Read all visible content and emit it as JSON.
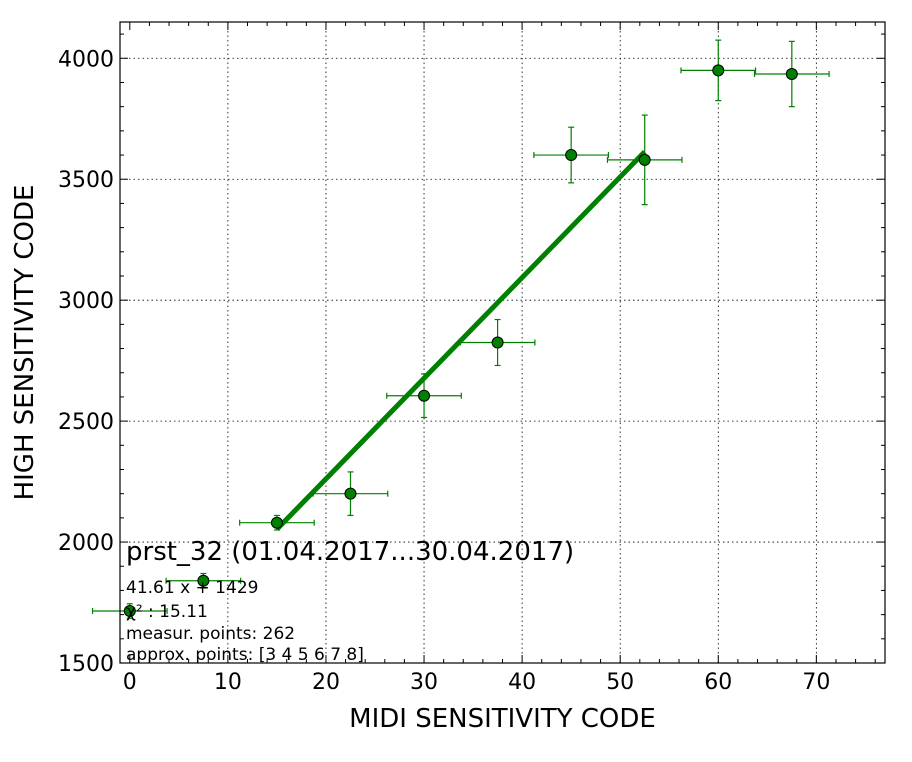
{
  "chart_data": {
    "type": "scatter",
    "title": "prst_32 (01.04.2017...30.04.2017)",
    "xlabel": "MIDI SENSITIVITY CODE",
    "ylabel": "HIGH SENSITIVITY CODE",
    "xlim": [
      -1,
      77
    ],
    "ylim": [
      1500,
      4150
    ],
    "xticks": [
      0,
      10,
      20,
      30,
      40,
      50,
      60,
      70
    ],
    "yticks": [
      1500,
      2000,
      2500,
      3000,
      3500,
      4000
    ],
    "grid": true,
    "color": "#008000",
    "series": [
      {
        "points": [
          {
            "x": 0,
            "y": 1715,
            "xerr": 3.8,
            "yerr": 30
          },
          {
            "x": 7.5,
            "y": 1840,
            "xerr": 3.8,
            "yerr": 30
          },
          {
            "x": 15,
            "y": 2080,
            "xerr": 3.8,
            "yerr": 30
          },
          {
            "x": 22.5,
            "y": 2200,
            "xerr": 3.8,
            "yerr": 90
          },
          {
            "x": 30,
            "y": 2605,
            "xerr": 3.8,
            "yerr": 90
          },
          {
            "x": 37.5,
            "y": 2825,
            "xerr": 3.8,
            "yerr": 95
          },
          {
            "x": 45,
            "y": 3600,
            "xerr": 3.8,
            "yerr": 115
          },
          {
            "x": 52.5,
            "y": 3580,
            "xerr": 3.8,
            "yerr": 185
          },
          {
            "x": 60,
            "y": 3950,
            "xerr": 3.8,
            "yerr": 125
          },
          {
            "x": 67.5,
            "y": 3935,
            "xerr": 3.8,
            "yerr": 135
          }
        ]
      }
    ],
    "fit_line": {
      "slope": 41.61,
      "intercept": 1429,
      "x_range": [
        15,
        52.5
      ]
    },
    "annotations": [
      "41.61 x + 1429",
      "χ² : 15.11",
      "measur. points: 262",
      "approx. points: [3 4 5 6 7 8]"
    ]
  }
}
